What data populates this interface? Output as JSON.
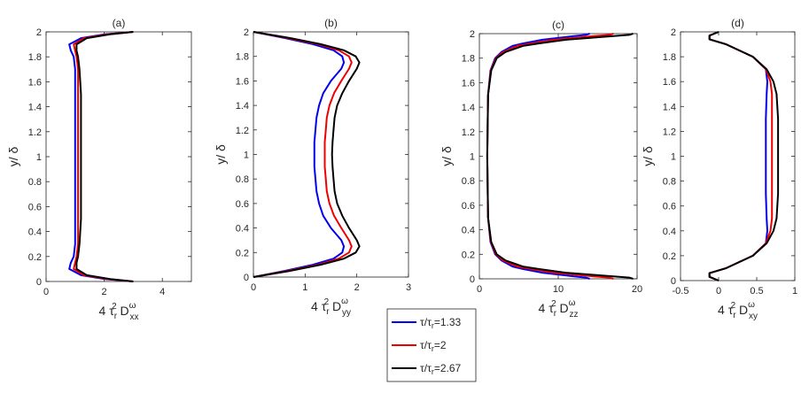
{
  "colors": {
    "s0": "#0000ee",
    "s1": "#ee0000",
    "s2": "#000000"
  },
  "legend": [
    {
      "key": "s0",
      "label": "τ/τ",
      "sub": "r",
      "value": "=1.33"
    },
    {
      "key": "s1",
      "label": "τ/τ",
      "sub": "r",
      "value": "=2"
    },
    {
      "key": "s2",
      "label": "τ/τ",
      "sub": "r",
      "value": "=2.67"
    }
  ],
  "chart_data": [
    {
      "type": "line",
      "title": "(a)",
      "xlabel": {
        "pre": "4",
        "tau": "τ",
        "sub": "r",
        "sup": "2",
        "D": "D",
        "dsup": "ω",
        "dsub": "xx"
      },
      "ylabel": "y/ δ",
      "xlim": [
        0,
        5
      ],
      "ylim": [
        0,
        2
      ],
      "xticks": [
        0,
        2,
        4
      ],
      "yticks": [
        0,
        0.2,
        0.4,
        0.6,
        0.8,
        1,
        1.2,
        1.4,
        1.6,
        1.8,
        2
      ],
      "y": [
        0,
        0.02,
        0.05,
        0.1,
        0.15,
        0.2,
        0.3,
        0.5,
        0.7,
        1.0,
        1.3,
        1.5,
        1.7,
        1.8,
        1.85,
        1.9,
        1.95,
        1.98,
        2.0
      ],
      "series": [
        {
          "key": "s0",
          "x": [
            3.0,
            2.0,
            1.2,
            0.8,
            0.85,
            0.95,
            1.0,
            1.0,
            1.0,
            1.0,
            1.0,
            1.0,
            1.0,
            0.95,
            0.85,
            0.8,
            1.2,
            2.0,
            3.0
          ]
        },
        {
          "key": "s1",
          "x": [
            3.0,
            2.1,
            1.3,
            0.95,
            1.0,
            1.05,
            1.1,
            1.1,
            1.1,
            1.1,
            1.1,
            1.1,
            1.1,
            1.05,
            1.0,
            0.95,
            1.3,
            2.1,
            3.0
          ]
        },
        {
          "key": "s2",
          "x": [
            3.0,
            2.2,
            1.4,
            1.05,
            1.05,
            1.1,
            1.15,
            1.2,
            1.2,
            1.2,
            1.2,
            1.2,
            1.15,
            1.1,
            1.05,
            1.05,
            1.4,
            2.2,
            3.0
          ]
        }
      ]
    },
    {
      "type": "line",
      "title": "(b)",
      "xlabel": {
        "pre": "4",
        "tau": "τ",
        "sub": "r",
        "sup": "2",
        "D": "D",
        "dsup": "ω",
        "dsub": "yy"
      },
      "ylabel": "y/ δ",
      "xlim": [
        0,
        3
      ],
      "ylim": [
        0,
        2
      ],
      "xticks": [
        0,
        1,
        2,
        3
      ],
      "yticks": [
        0,
        0.2,
        0.4,
        0.6,
        0.8,
        1,
        1.2,
        1.4,
        1.6,
        1.8,
        2
      ],
      "y": [
        0,
        0.05,
        0.1,
        0.15,
        0.2,
        0.25,
        0.3,
        0.4,
        0.5,
        0.6,
        0.7,
        0.8,
        0.9,
        1.0,
        1.1,
        1.2,
        1.3,
        1.4,
        1.5,
        1.6,
        1.7,
        1.75,
        1.8,
        1.85,
        1.9,
        1.95,
        2.0
      ],
      "series": [
        {
          "key": "s0",
          "x": [
            0,
            0.6,
            1.15,
            1.55,
            1.72,
            1.75,
            1.7,
            1.5,
            1.35,
            1.27,
            1.22,
            1.2,
            1.18,
            1.18,
            1.18,
            1.2,
            1.22,
            1.27,
            1.35,
            1.5,
            1.7,
            1.75,
            1.72,
            1.55,
            1.15,
            0.6,
            0
          ]
        },
        {
          "key": "s1",
          "x": [
            0,
            0.65,
            1.25,
            1.65,
            1.85,
            1.9,
            1.85,
            1.7,
            1.56,
            1.47,
            1.42,
            1.4,
            1.38,
            1.38,
            1.38,
            1.4,
            1.42,
            1.47,
            1.56,
            1.7,
            1.85,
            1.9,
            1.85,
            1.65,
            1.25,
            0.65,
            0
          ]
        },
        {
          "key": "s2",
          "x": [
            0,
            0.7,
            1.3,
            1.75,
            1.98,
            2.05,
            2.0,
            1.85,
            1.72,
            1.62,
            1.57,
            1.55,
            1.53,
            1.52,
            1.53,
            1.55,
            1.57,
            1.62,
            1.72,
            1.85,
            2.0,
            2.05,
            1.98,
            1.75,
            1.3,
            0.7,
            0
          ]
        }
      ]
    },
    {
      "type": "line",
      "title": "(c)",
      "xlabel": {
        "pre": "4",
        "tau": "τ",
        "sub": "r",
        "sup": "2",
        "D": "D",
        "dsup": "ω",
        "dsub": "zz"
      },
      "ylabel": "y/ δ",
      "xlim": [
        0,
        20
      ],
      "ylim": [
        0,
        2
      ],
      "xticks": [
        0,
        10,
        20
      ],
      "yticks": [
        0,
        0.2,
        0.4,
        0.6,
        0.8,
        1,
        1.2,
        1.4,
        1.6,
        1.8,
        2
      ],
      "y": [
        0,
        0.01,
        0.02,
        0.05,
        0.08,
        0.1,
        0.15,
        0.2,
        0.3,
        0.5,
        1.0,
        1.5,
        1.7,
        1.8,
        1.85,
        1.9,
        1.92,
        1.95,
        1.98,
        1.99,
        2.0
      ],
      "series": [
        {
          "key": "s0",
          "x": [
            14,
            13.5,
            12,
            8,
            5.5,
            4.2,
            2.8,
            2.0,
            1.4,
            1.1,
            1.0,
            1.1,
            1.4,
            2.0,
            2.8,
            4.2,
            5.5,
            8,
            12,
            13.5,
            14
          ]
        },
        {
          "key": "s1",
          "x": [
            17,
            16.5,
            14.5,
            9.5,
            6.5,
            4.8,
            3.0,
            2.1,
            1.45,
            1.1,
            1.0,
            1.1,
            1.45,
            2.1,
            3.0,
            4.8,
            6.5,
            9.5,
            14.5,
            16.5,
            17
          ]
        },
        {
          "key": "s2",
          "x": [
            19.5,
            19,
            17,
            11,
            7.5,
            5.5,
            3.3,
            2.2,
            1.5,
            1.1,
            1.0,
            1.1,
            1.5,
            2.2,
            3.3,
            5.5,
            7.5,
            11,
            17,
            19,
            19.5
          ]
        }
      ]
    },
    {
      "type": "line",
      "title": "(d)",
      "xlabel": {
        "pre": "4",
        "tau": "τ",
        "sub": "r",
        "sup": "2",
        "D": "D",
        "dsup": "ω",
        "dsub": "xy"
      },
      "ylabel": "y/ δ",
      "xlim": [
        -0.5,
        1
      ],
      "ylim": [
        0,
        2
      ],
      "xticks": [
        -0.5,
        0,
        0.5,
        1
      ],
      "yticks": [
        0,
        0.2,
        0.4,
        0.6,
        0.8,
        1,
        1.2,
        1.4,
        1.6,
        1.8,
        2
      ],
      "y": [
        0,
        0.03,
        0.06,
        0.1,
        0.2,
        0.3,
        0.4,
        0.5,
        0.7,
        1.0,
        1.3,
        1.5,
        1.6,
        1.7,
        1.8,
        1.9,
        1.94,
        1.97,
        2.0
      ],
      "series": [
        {
          "key": "s0",
          "x": [
            0,
            -0.12,
            -0.12,
            0.1,
            0.45,
            0.62,
            0.64,
            0.63,
            0.62,
            0.62,
            0.62,
            0.63,
            0.64,
            0.62,
            0.45,
            0.1,
            -0.12,
            -0.12,
            0
          ]
        },
        {
          "key": "s1",
          "x": [
            0,
            -0.12,
            -0.12,
            0.1,
            0.45,
            0.62,
            0.68,
            0.7,
            0.7,
            0.7,
            0.7,
            0.7,
            0.68,
            0.62,
            0.45,
            0.1,
            -0.12,
            -0.12,
            0
          ]
        },
        {
          "key": "s2",
          "x": [
            0,
            -0.12,
            -0.12,
            0.1,
            0.45,
            0.63,
            0.72,
            0.76,
            0.78,
            0.78,
            0.78,
            0.76,
            0.72,
            0.63,
            0.45,
            0.1,
            -0.12,
            -0.12,
            0
          ]
        }
      ]
    }
  ]
}
